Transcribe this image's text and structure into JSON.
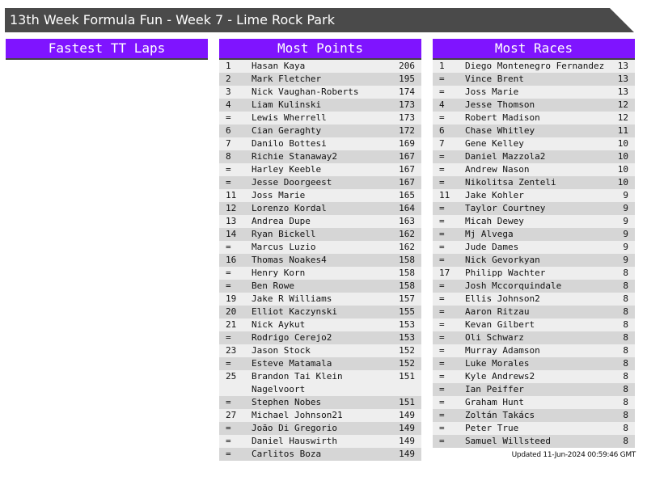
{
  "title": "13th Week Formula Fun - Week 7 - Lime Rock Park",
  "fastest_tt": {
    "heading": "Fastest TT Laps",
    "rows": []
  },
  "most_points": {
    "heading": "Most Points",
    "rows": [
      [
        "1",
        "Hasan Kaya",
        "206"
      ],
      [
        "2",
        "Mark Fletcher",
        "195"
      ],
      [
        "3",
        "Nick Vaughan-Roberts",
        "174"
      ],
      [
        "4",
        "Liam Kulinski",
        "173"
      ],
      [
        "=",
        "Lewis Wherrell",
        "173"
      ],
      [
        "6",
        "Cian Geraghty",
        "172"
      ],
      [
        "7",
        "Danilo Bottesi",
        "169"
      ],
      [
        "8",
        "Richie Stanaway2",
        "167"
      ],
      [
        "=",
        "Harley Keeble",
        "167"
      ],
      [
        "=",
        "Jesse Doorgeest",
        "167"
      ],
      [
        "11",
        "Joss Marie",
        "165"
      ],
      [
        "12",
        "Lorenzo Kordal",
        "164"
      ],
      [
        "13",
        "Andrea Dupe",
        "163"
      ],
      [
        "14",
        "Ryan Bickell",
        "162"
      ],
      [
        "=",
        "Marcus Luzio",
        "162"
      ],
      [
        "16",
        "Thomas Noakes4",
        "158"
      ],
      [
        "=",
        "Henry Korn",
        "158"
      ],
      [
        "=",
        "Ben Rowe",
        "158"
      ],
      [
        "19",
        "Jake R Williams",
        "157"
      ],
      [
        "20",
        "Elliot Kaczynski",
        "155"
      ],
      [
        "21",
        "Nick Aykut",
        "153"
      ],
      [
        "=",
        "Rodrigo Cerejo2",
        "153"
      ],
      [
        "23",
        "Jason Stock",
        "152"
      ],
      [
        "=",
        "Esteve Matamala",
        "152"
      ],
      [
        "25",
        "Brandon Tai Klein Nagelvoort",
        "151"
      ],
      [
        "=",
        "Stephen Nobes",
        "151"
      ],
      [
        "27",
        "Michael Johnson21",
        "149"
      ],
      [
        "=",
        "João Di Gregorio",
        "149"
      ],
      [
        "=",
        "Daniel Hauswirth",
        "149"
      ],
      [
        "=",
        "Carlitos Boza",
        "149"
      ]
    ]
  },
  "most_races": {
    "heading": "Most Races",
    "rows": [
      [
        "1",
        "Diego Montenegro Fernandez",
        "13"
      ],
      [
        "=",
        "Vince Brent",
        "13"
      ],
      [
        "=",
        "Joss Marie",
        "13"
      ],
      [
        "4",
        "Jesse Thomson",
        "12"
      ],
      [
        "=",
        "Robert Madison",
        "12"
      ],
      [
        "6",
        "Chase Whitley",
        "11"
      ],
      [
        "7",
        "Gene Kelley",
        "10"
      ],
      [
        "=",
        "Daniel Mazzola2",
        "10"
      ],
      [
        "=",
        "Andrew Nason",
        "10"
      ],
      [
        "=",
        "Nikolitsa Zenteli",
        "10"
      ],
      [
        "11",
        "Jake Kohler",
        "9"
      ],
      [
        "=",
        "Taylor Courtney",
        "9"
      ],
      [
        "=",
        "Micah Dewey",
        "9"
      ],
      [
        "=",
        "Mj Alvega",
        "9"
      ],
      [
        "=",
        "Jude Dames",
        "9"
      ],
      [
        "=",
        "Nick Gevorkyan",
        "9"
      ],
      [
        "17",
        "Philipp Wachter",
        "8"
      ],
      [
        "=",
        "Josh Mccorquindale",
        "8"
      ],
      [
        "=",
        "Ellis Johnson2",
        "8"
      ],
      [
        "=",
        "Aaron Ritzau",
        "8"
      ],
      [
        "=",
        "Kevan Gilbert",
        "8"
      ],
      [
        "=",
        "Oli Schwarz",
        "8"
      ],
      [
        "=",
        "Murray Adamson",
        "8"
      ],
      [
        "=",
        "Luke Morales",
        "8"
      ],
      [
        "=",
        "Kyle Andrews2",
        "8"
      ],
      [
        "=",
        "Ian Peiffer",
        "8"
      ],
      [
        "=",
        "Graham Hunt",
        "8"
      ],
      [
        "=",
        "Zoltán Takács",
        "8"
      ],
      [
        "=",
        "Peter True",
        "8"
      ],
      [
        "=",
        "Samuel Willsteed",
        "8"
      ]
    ]
  },
  "updated": "Updated 11-Jun-2024 00:59:46 GMT",
  "colors": {
    "header_purple": "#7f14ff",
    "title_bar": "#4a4a4a"
  }
}
